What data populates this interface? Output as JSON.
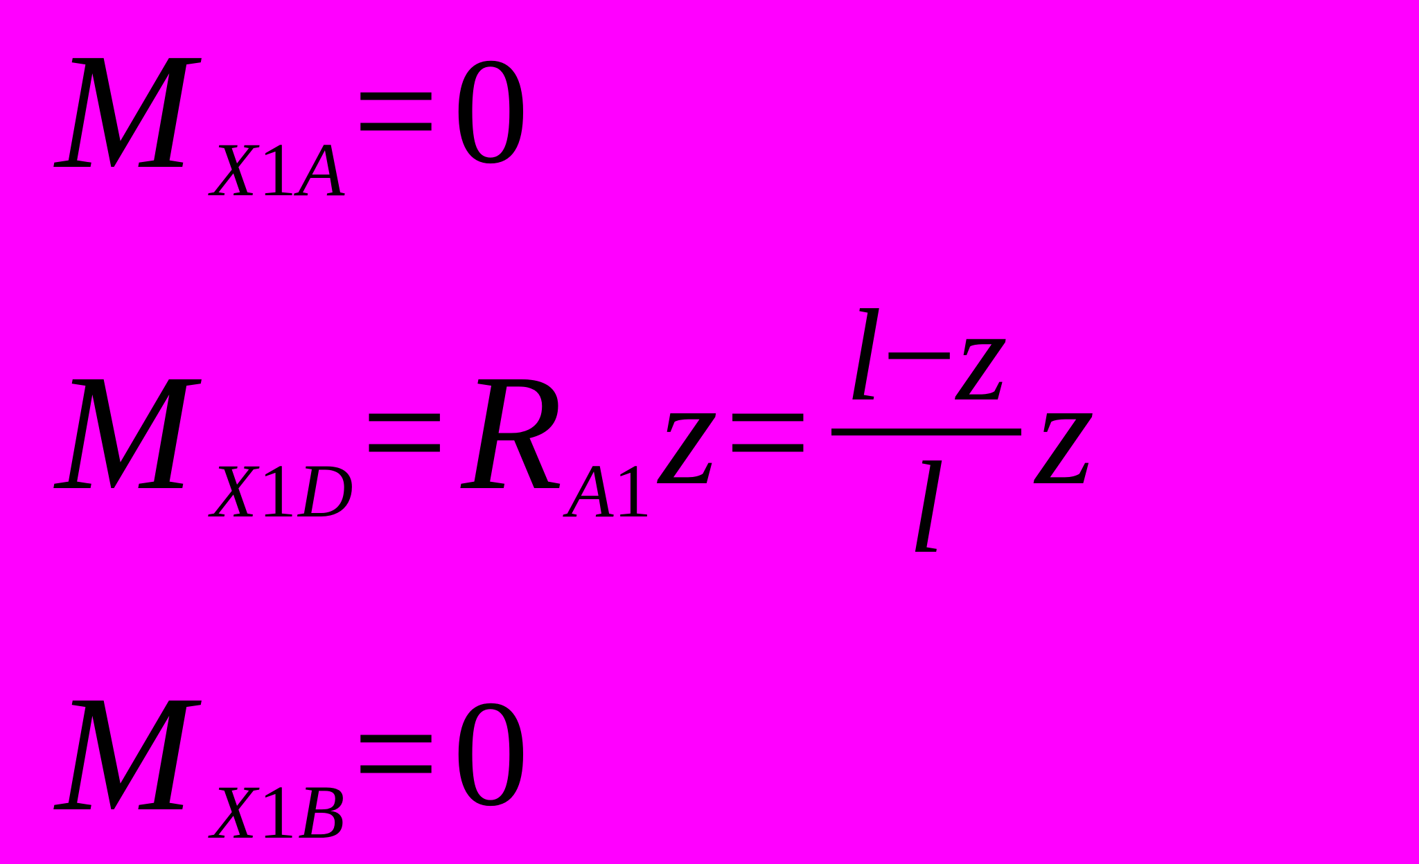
{
  "background_color": "#ff00ff",
  "text_color": "#000000",
  "font_family": "Times New Roman, serif",
  "equations": {
    "line1": {
      "symbol": "M",
      "subscript_parts": {
        "X": "X",
        "one": "1",
        "A": "A"
      },
      "eq": "=",
      "rhs_zero": "0"
    },
    "line2": {
      "symbol": "M",
      "subscript_parts": {
        "X": "X",
        "one": "1",
        "D": "D"
      },
      "eq1": "=",
      "R": "R",
      "R_subscript_parts": {
        "A": "A",
        "one": "1"
      },
      "z1": "z",
      "eq2": "=",
      "frac": {
        "num_l": "l",
        "num_minus": "−",
        "num_z": "z",
        "den_l": "l"
      },
      "z2": "z"
    },
    "line3": {
      "symbol": "M",
      "subscript_parts": {
        "X": "X",
        "one": "1",
        "B": "B"
      },
      "eq": "=",
      "rhs_zero": "0"
    }
  }
}
